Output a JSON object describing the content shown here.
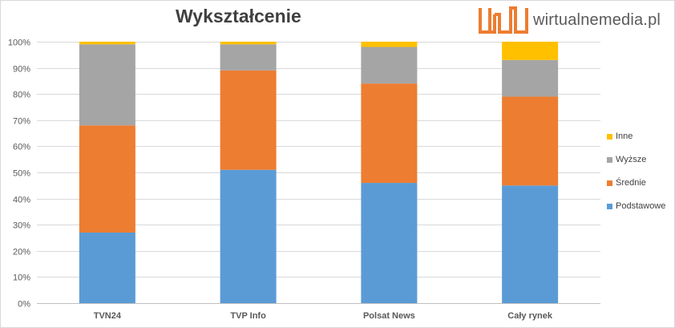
{
  "brand": {
    "text": "wirtualnemedia.pl",
    "logo_icon": "wm-logo-icon"
  },
  "chart_data": {
    "type": "bar",
    "stacked": true,
    "percent_stacked": true,
    "title": "Wykształcenie",
    "xlabel": "",
    "ylabel": "",
    "ylim": [
      0,
      100
    ],
    "yticks": [
      "0%",
      "10%",
      "20%",
      "30%",
      "40%",
      "50%",
      "60%",
      "70%",
      "80%",
      "90%",
      "100%"
    ],
    "grid": true,
    "legend_position": "right",
    "categories": [
      "TVN24",
      "TVP Info",
      "Polsat News",
      "Cały rynek"
    ],
    "series": [
      {
        "name": "Podstawowe",
        "color": "#5b9bd5",
        "values": [
          27,
          51,
          46,
          45
        ]
      },
      {
        "name": "Średnie",
        "color": "#ed7d31",
        "values": [
          41,
          38,
          38,
          34
        ]
      },
      {
        "name": "Wyższe",
        "color": "#a5a5a5",
        "values": [
          31,
          10,
          14,
          14
        ]
      },
      {
        "name": "Inne",
        "color": "#ffc000",
        "values": [
          1,
          1,
          2,
          7
        ]
      }
    ]
  }
}
